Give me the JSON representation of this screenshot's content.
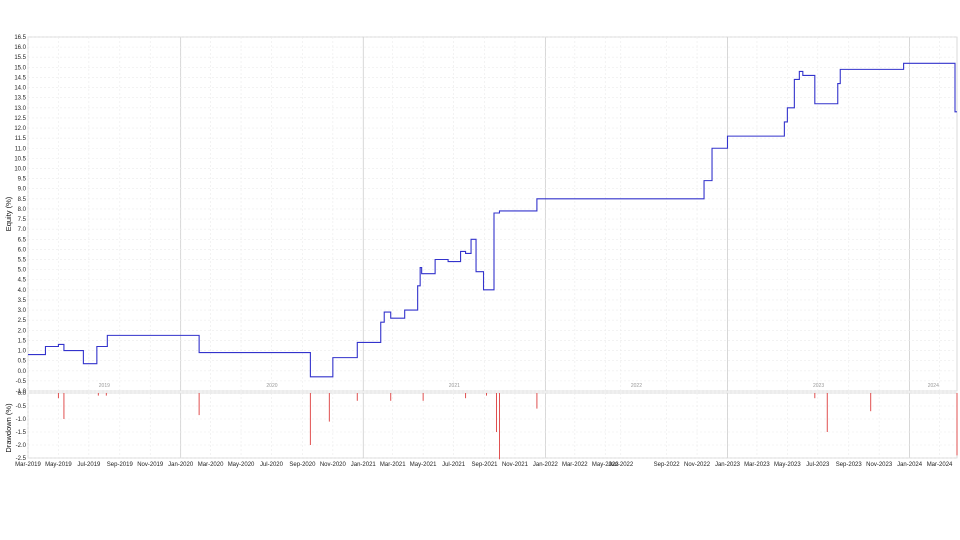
{
  "chart_data": [
    {
      "type": "line",
      "ylabel": "Equity (%)",
      "ylim": [
        -1.0,
        16.5
      ],
      "yticks": [
        "-1.0",
        "-0.5",
        "0.0",
        "0.5",
        "1.0",
        "1.5",
        "2.0",
        "2.5",
        "3.0",
        "3.5",
        "4.0",
        "4.5",
        "5.0",
        "5.5",
        "6.0",
        "6.5",
        "7.0",
        "7.5",
        "8.0",
        "8.5",
        "9.0",
        "9.5",
        "10.0",
        "10.5",
        "11.0",
        "11.5",
        "12.0",
        "12.5",
        "13.0",
        "13.5",
        "14.0",
        "14.5",
        "15.0",
        "15.5",
        "16.0",
        "16.5"
      ],
      "year_labels": [
        "2019",
        "2020",
        "2021",
        "2022",
        "2023",
        "2024"
      ],
      "grid": true,
      "line_color": "#3333cc",
      "step": true,
      "series": [
        {
          "x": [
            "2019-03-01",
            "2019-03-20",
            "2019-04-05",
            "2019-04-10",
            "2019-05-01",
            "2019-05-05",
            "2019-05-12",
            "2019-06-20",
            "2019-07-01",
            "2019-07-17",
            "2019-08-01",
            "2019-08-07",
            "2020-02-05",
            "2020-02-07",
            "2020-09-15",
            "2020-09-17",
            "2020-10-25",
            "2020-11-01",
            "2020-12-15",
            "2020-12-20",
            "2021-02-05",
            "2021-02-12",
            "2021-02-25",
            "2021-03-15",
            "2021-03-25",
            "2021-04-20",
            "2021-04-25",
            "2021-04-28",
            "2021-05-25",
            "2021-06-20",
            "2021-07-15",
            "2021-07-25",
            "2021-08-05",
            "2021-08-15",
            "2021-08-30",
            "2021-09-15",
            "2021-09-20",
            "2021-10-01",
            "2021-12-15",
            "2021-12-20",
            "2022-01-01",
            "2022-01-10",
            "2022-11-15",
            "2022-11-20",
            "2022-12-01",
            "2022-12-10",
            "2023-01-01",
            "2023-01-10",
            "2023-04-25",
            "2023-05-01",
            "2023-05-15",
            "2023-05-20",
            "2023-05-25",
            "2023-06-01",
            "2023-06-25",
            "2023-07-01",
            "2023-07-10",
            "2023-07-15",
            "2023-08-10",
            "2023-08-15",
            "2023-12-10",
            "2023-12-20",
            "2023-12-25",
            "2024-01-01",
            "2024-03-15",
            "2024-03-20",
            "2024-04-01",
            "2024-04-05"
          ],
          "y": [
            0.8,
            0.8,
            1.2,
            1.2,
            1.3,
            1.3,
            1.0,
            0.35,
            0.35,
            1.2,
            1.2,
            1.75,
            1.75,
            0.9,
            0.9,
            -0.3,
            -0.3,
            0.65,
            0.65,
            1.4,
            2.4,
            2.9,
            2.6,
            2.6,
            3.0,
            4.2,
            5.1,
            4.8,
            5.5,
            5.4,
            5.9,
            5.8,
            6.5,
            4.9,
            4.0,
            4.0,
            7.8,
            7.9,
            8.5,
            8.5,
            8.5,
            8.5,
            9.4,
            9.4,
            11.0,
            11.0,
            11.6,
            11.6,
            12.3,
            13.0,
            14.4,
            14.4,
            14.8,
            14.6,
            13.2,
            13.2,
            13.2,
            13.2,
            14.2,
            14.9,
            14.9,
            15.2,
            15.2,
            15.2,
            15.2,
            15.2,
            12.8,
            12.8
          ]
        }
      ]
    },
    {
      "type": "bar",
      "ylabel": "Drawdown (%)",
      "ylim": [
        -2.5,
        0.0
      ],
      "yticks": [
        "0.0",
        "-0.5",
        "-1.0",
        "-1.5",
        "-2.0",
        "-2.5"
      ],
      "bar_color": "#e05050",
      "x_ticks": [
        "Mar-2019",
        "May-2019",
        "Jul-2019",
        "Sep-2019",
        "Nov-2019",
        "Jan-2020",
        "Mar-2020",
        "May-2020",
        "Jul-2020",
        "Sep-2020",
        "Nov-2020",
        "Jan-2021",
        "Mar-2021",
        "May-2021",
        "Jul-2021",
        "Sep-2021",
        "Nov-2021",
        "Jan-2022",
        "Mar-2022",
        "May-2022",
        "Jun-2022",
        "Sep-2022",
        "Nov-2022",
        "Jan-2023",
        "Mar-2023",
        "May-2023",
        "Jul-2023",
        "Sep-2023",
        "Nov-2023",
        "Jan-2024",
        "Mar-2024"
      ],
      "bars": [
        {
          "x": "2019-05-01",
          "value": -0.2
        },
        {
          "x": "2019-05-12",
          "value": -1.0
        },
        {
          "x": "2019-07-20",
          "value": -0.1
        },
        {
          "x": "2019-08-05",
          "value": -0.1
        },
        {
          "x": "2020-02-07",
          "value": -0.85
        },
        {
          "x": "2020-09-17",
          "value": -2.0
        },
        {
          "x": "2020-10-25",
          "value": -1.1
        },
        {
          "x": "2020-12-20",
          "value": -0.3
        },
        {
          "x": "2021-02-25",
          "value": -0.3
        },
        {
          "x": "2021-05-01",
          "value": -0.3
        },
        {
          "x": "2021-07-25",
          "value": -0.2
        },
        {
          "x": "2021-09-05",
          "value": -0.1
        },
        {
          "x": "2021-09-25",
          "value": -1.5
        },
        {
          "x": "2021-10-01",
          "value": -2.55
        },
        {
          "x": "2021-12-15",
          "value": -0.6
        },
        {
          "x": "2023-06-25",
          "value": -0.2
        },
        {
          "x": "2023-07-20",
          "value": -1.5
        },
        {
          "x": "2023-10-15",
          "value": -0.7
        },
        {
          "x": "2024-04-05",
          "value": -2.4
        }
      ]
    }
  ]
}
